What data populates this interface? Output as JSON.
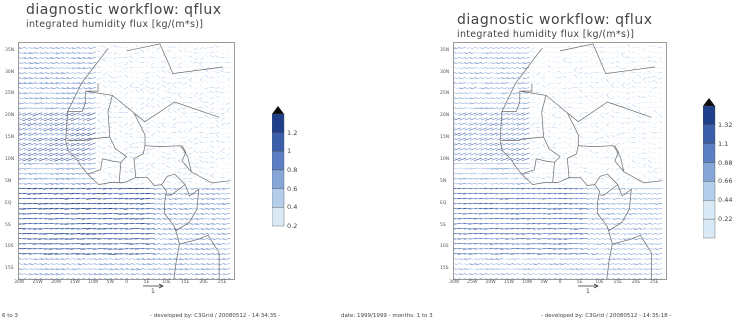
{
  "panels": [
    {
      "title": "diagnostic workflow: qflux",
      "subtitle": "integrated humidity flux [kg/(m*s)]",
      "lat_labels": [
        "35N",
        "30N",
        "25N",
        "20N",
        "15N",
        "10N",
        "5N",
        "EQ",
        "5S",
        "10S",
        "15S"
      ],
      "lon_labels": [
        "30W",
        "25W",
        "20W",
        "15W",
        "10W",
        "5W",
        "0",
        "5E",
        "10E",
        "15E",
        "20E",
        "25E"
      ],
      "colorbar_labels": [
        "1.2",
        "1",
        "0.8",
        "0.6",
        "0.4",
        "0.2"
      ],
      "reference_vector": "1",
      "footer_left": "6 to 3",
      "footer_right": "- developed by: C3Grid / 20080512 - 14:34:35 -"
    },
    {
      "title": "diagnostic workflow: qflux",
      "subtitle": "integrated humidity flux [kg/(m*s)]",
      "lat_labels": [
        "35N",
        "30N",
        "25N",
        "20N",
        "15N",
        "10N",
        "5N",
        "EQ",
        "5S",
        "10S",
        "15S"
      ],
      "lon_labels": [
        "30W",
        "25W",
        "20W",
        "15W",
        "10W",
        "5W",
        "0",
        "5E",
        "10E",
        "15E",
        "20E",
        "25E"
      ],
      "colorbar_labels": [
        "1.32",
        "1.1",
        "0.88",
        "0.66",
        "0.44",
        "0.22"
      ],
      "reference_vector": "1",
      "footer_left": "date: 1999/1999 - months: 1 to 3",
      "footer_right": "- developed by: C3Grid / 20080512 - 14:35:18 -"
    }
  ],
  "colors": {
    "cb": [
      "#0b0b0b",
      "#1f3f8a",
      "#3c5faa",
      "#5b7fc2",
      "#86a6d8",
      "#b3cdea",
      "#d9e9f6"
    ],
    "coast": "#6b6b6b",
    "arrow": "#7a95c8"
  }
}
